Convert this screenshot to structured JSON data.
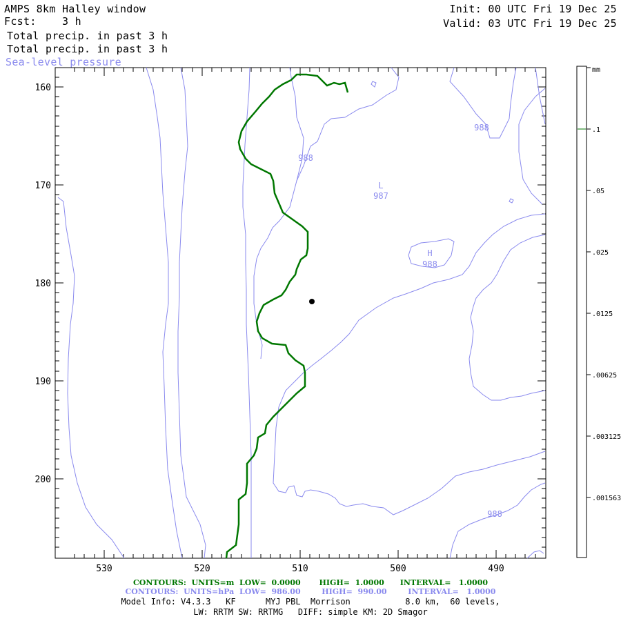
{
  "header": {
    "left_line1": "AMPS 8km Halley window",
    "left_line2": "Fcst:    3 h",
    "field1": "Total precip. in past 3 h",
    "field2": "Total precip. in past 3 h",
    "field3": "Sea-level pressure",
    "right_line1": "Init: 00 UTC Fri 19 Dec 25",
    "right_line2": "Valid: 03 UTC Fri 19 Dec 25"
  },
  "axes": {
    "y_ticks": [
      "160",
      "170",
      "180",
      "190",
      "200"
    ],
    "x_ticks": [
      "530",
      "520",
      "510",
      "500",
      "490"
    ]
  },
  "map_labels": {
    "isobar_988_a": "988",
    "isobar_988_b": "988",
    "low_symbol": "L",
    "low_value": "987",
    "high_symbol": "H",
    "high_value": "988",
    "isobar_988_c": "988"
  },
  "colorbar": {
    "unit": "mm",
    "labels": [
      ".1",
      ".05",
      ".025",
      ".0125",
      ".00625",
      ".003125",
      ".001563"
    ]
  },
  "footer": {
    "contours_green": "CONTOURS:  UNITS=m  LOW=  0.0000       HIGH=  1.0000      INTERVAL=   1.0000",
    "contours_blue": "CONTOURS:  UNITS=hPa  LOW=  986.00        HIGH=  990.00        INTERVAL=   1.0000",
    "model_info1": "Model Info: V4.3.3   KF      MYJ PBL  Morrison           8.0 km,  60 levels,",
    "model_info2": "LW: RRTM SW: RRTMG   DIFF: simple KM: 2D Smagor"
  },
  "colors": {
    "precip_contour": "#007700",
    "pressure_contour": "#8a8aee",
    "frame": "#000000"
  }
}
